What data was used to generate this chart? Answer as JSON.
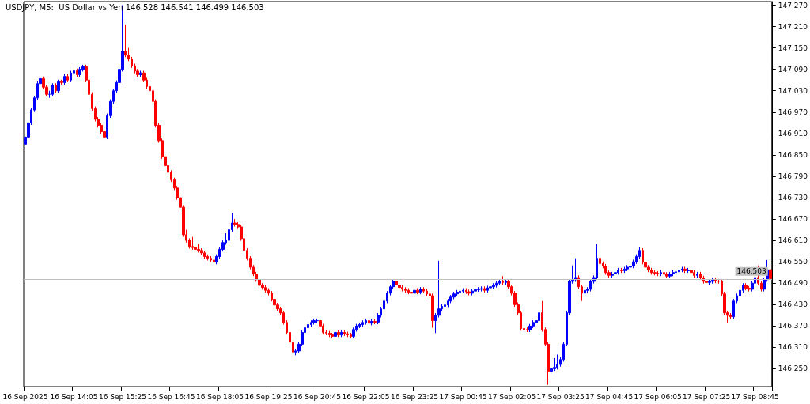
{
  "chart_data": {
    "type": "candlestick",
    "title": "USDJPY, M5:  US Dollar vs Yen 146.528 146.541 146.499 146.503",
    "categories": [
      "16 Sep 2025",
      null,
      null,
      null,
      null,
      null,
      null,
      null,
      null,
      null,
      null,
      null,
      null,
      null,
      null,
      null,
      "16 Sep 14:05",
      null,
      null,
      null,
      null,
      null,
      null,
      null,
      null,
      null,
      null,
      null,
      null,
      null,
      null,
      null,
      "16 Sep 15:25",
      null,
      null,
      null,
      null,
      null,
      null,
      null,
      null,
      null,
      null,
      null,
      null,
      null,
      null,
      null,
      "16 Sep 16:45",
      null,
      null,
      null,
      null,
      null,
      null,
      null,
      null,
      null,
      null,
      null,
      null,
      null,
      null,
      null,
      "16 Sep 18:05",
      null,
      null,
      null,
      null,
      null,
      null,
      null,
      null,
      null,
      null,
      null,
      null,
      null,
      null,
      null,
      "16 Sep 19:25",
      null,
      null,
      null,
      null,
      null,
      null,
      null,
      null,
      null,
      null,
      null,
      null,
      null,
      null,
      null,
      "16 Sep 20:45",
      null,
      null,
      null,
      null,
      null,
      null,
      null,
      null,
      null,
      null,
      null,
      null,
      null,
      null,
      null,
      "16 Sep 22:05",
      null,
      null,
      null,
      null,
      null,
      null,
      null,
      null,
      null,
      null,
      null,
      null,
      null,
      null,
      null,
      "16 Sep 23:25",
      null,
      null,
      null,
      null,
      null,
      null,
      null,
      null,
      null,
      null,
      null,
      null,
      null,
      null,
      null,
      "17 Sep 00:45",
      null,
      null,
      null,
      null,
      null,
      null,
      null,
      null,
      null,
      null,
      null,
      null,
      null,
      null,
      null,
      "17 Sep 02:05",
      null,
      null,
      null,
      null,
      null,
      null,
      null,
      null,
      null,
      null,
      null,
      null,
      null,
      null,
      null,
      "17 Sep 03:25",
      null,
      null,
      null,
      null,
      null,
      null,
      null,
      null,
      null,
      null,
      null,
      null,
      null,
      null,
      null,
      "17 Sep 04:45",
      null,
      null,
      null,
      null,
      null,
      null,
      null,
      null,
      null,
      null,
      null,
      null,
      null,
      null,
      null,
      "17 Sep 06:05",
      null,
      null,
      null,
      null,
      null,
      null,
      null,
      null,
      null,
      null,
      null,
      null,
      null,
      null,
      null,
      "17 Sep 07:25",
      null,
      null,
      null,
      null,
      null,
      null,
      null,
      null,
      null,
      null,
      null,
      null,
      null,
      null,
      null,
      "17 Sep 08:45",
      null,
      null,
      null,
      null,
      null
    ],
    "colors": [
      "#0000ff",
      "#0000ff",
      "#0000ff",
      "#0000ff",
      "#0000ff",
      "#0000ff",
      "#ff0000",
      "#ff0000",
      "#0000ff",
      "#0000ff",
      "#ff0000",
      "#0000ff",
      "#ff0000",
      "#0000ff",
      "#ff0000",
      "#0000ff",
      "#0000ff",
      "#ff0000",
      "#0000ff",
      "#0000ff",
      "#ff0000",
      "#ff0000",
      "#ff0000",
      "#ff0000",
      "#ff0000",
      "#ff0000",
      "#ff0000",
      "#0000ff",
      "#0000ff",
      "#0000ff",
      "#0000ff",
      "#0000ff",
      "#0000ff",
      "#ff0000",
      "#ff0000",
      "#ff0000",
      "#ff0000",
      "#ff0000",
      "#0000ff",
      "#ff0000",
      "#ff0000",
      "#ff0000",
      "#ff0000",
      "#ff0000",
      "#ff0000",
      "#ff0000",
      "#ff0000",
      "#ff0000",
      "#ff0000",
      "#ff0000",
      "#ff0000",
      "#ff0000",
      "#ff0000",
      "#ff0000",
      "#ff0000",
      "#ff0000",
      "#ff0000",
      "#ff0000",
      "#ff0000",
      "#ff0000",
      "#ff0000",
      "#ff0000",
      "#ff0000",
      "#0000ff",
      "#0000ff",
      "#0000ff",
      "#0000ff",
      "#0000ff",
      "#0000ff",
      "#ff0000",
      "#ff0000",
      "#ff0000",
      "#ff0000",
      "#ff0000",
      "#ff0000",
      "#ff0000",
      "#ff0000",
      "#ff0000",
      "#ff0000",
      "#ff0000",
      "#ff0000",
      "#ff0000",
      "#ff0000",
      "#ff0000",
      "#ff0000",
      "#ff0000",
      "#ff0000",
      "#ff0000",
      "#ff0000",
      "#0000ff",
      "#0000ff",
      "#0000ff",
      "#0000ff",
      "#0000ff",
      "#0000ff",
      "#0000ff",
      "#0000ff",
      "#ff0000",
      "#ff0000",
      "#ff0000",
      "#ff0000",
      "#ff0000",
      "#0000ff",
      "#ff0000",
      "#0000ff",
      "#ff0000",
      "#ff0000",
      "#ff0000",
      "#0000ff",
      "#0000ff",
      "#0000ff",
      "#0000ff",
      "#0000ff",
      "#ff0000",
      "#0000ff",
      "#ff0000",
      "#0000ff",
      "#0000ff",
      "#0000ff",
      "#0000ff",
      "#0000ff",
      "#0000ff",
      "#ff0000",
      "#ff0000",
      "#ff0000",
      "#ff0000",
      "#ff0000",
      "#ff0000",
      "#0000ff",
      "#ff0000",
      "#0000ff",
      "#ff0000",
      "#ff0000",
      "#ff0000",
      "#ff0000",
      "#0000ff",
      "#0000ff",
      "#0000ff",
      "#0000ff",
      "#0000ff",
      "#0000ff",
      "#0000ff",
      "#0000ff",
      "#0000ff",
      "#0000ff",
      "#ff0000",
      "#ff0000",
      "#0000ff",
      "#0000ff",
      "#0000ff",
      "#0000ff",
      "#ff0000",
      "#0000ff",
      "#0000ff",
      "#0000ff",
      "#0000ff",
      "#0000ff",
      "#ff0000",
      "#0000ff",
      "#ff0000",
      "#ff0000",
      "#ff0000",
      "#ff0000",
      "#ff0000",
      "#ff0000",
      "#ff0000",
      "#0000ff",
      "#0000ff",
      "#0000ff",
      "#0000ff",
      "#ff0000",
      "#ff0000",
      "#ff0000",
      "#0000ff",
      "#0000ff",
      "#0000ff",
      "#0000ff",
      "#0000ff",
      "#0000ff",
      "#0000ff",
      "#0000ff",
      "#0000ff",
      "#ff0000",
      "#ff0000",
      "#0000ff",
      "#0000ff",
      "#0000ff",
      "#0000ff",
      "#0000ff",
      "#ff0000",
      "#ff0000",
      "#ff0000",
      "#ff0000",
      "#0000ff",
      "#0000ff",
      "#0000ff",
      "#ff0000",
      "#0000ff",
      "#0000ff",
      "#0000ff",
      "#0000ff",
      "#0000ff",
      "#0000ff",
      "#ff0000",
      "#ff0000",
      "#ff0000",
      "#ff0000",
      "#ff0000",
      "#ff0000",
      "#0000ff",
      "#ff0000",
      "#ff0000",
      "#0000ff",
      "#0000ff",
      "#0000ff",
      "#0000ff",
      "#0000ff",
      "#ff0000",
      "#0000ff",
      "#ff0000",
      "#ff0000",
      "#0000ff",
      "#ff0000",
      "#ff0000",
      "#ff0000",
      "#0000ff",
      "#0000ff",
      "#ff0000",
      "#ff0000",
      "#ff0000",
      "#ff0000",
      "#ff0000",
      "#ff0000",
      "#0000ff",
      "#0000ff",
      "#0000ff",
      "#0000ff",
      "#ff0000",
      "#ff0000",
      "#0000ff",
      "#0000ff",
      "#ff0000",
      "#ff0000",
      "#0000ff",
      "#0000ff",
      "#ff0000"
    ],
    "ohlc": [
      [
        146.88,
        146.906,
        146.874,
        146.9
      ],
      [
        146.9,
        146.946,
        146.894,
        146.94
      ],
      [
        146.94,
        146.982,
        146.934,
        146.976
      ],
      [
        146.976,
        147.016,
        146.97,
        147.01
      ],
      [
        147.01,
        147.056,
        147.004,
        147.05
      ],
      [
        147.05,
        147.07,
        147.044,
        147.064
      ],
      [
        147.064,
        147.07,
        147.034,
        147.04
      ],
      [
        147.04,
        147.046,
        147.014,
        147.02
      ],
      [
        147.02,
        147.03,
        147.01,
        147.02
      ],
      [
        147.02,
        147.051,
        147.014,
        147.045
      ],
      [
        147.045,
        147.051,
        147.024,
        147.03
      ],
      [
        147.03,
        147.061,
        147.024,
        147.055
      ],
      [
        147.055,
        147.061,
        147.047,
        147.053
      ],
      [
        147.053,
        147.076,
        147.047,
        147.07
      ],
      [
        147.07,
        147.076,
        147.054,
        147.06
      ],
      [
        147.06,
        147.086,
        147.054,
        147.08
      ],
      [
        147.08,
        147.092,
        147.074,
        147.086
      ],
      [
        147.086,
        147.092,
        147.069,
        147.075
      ],
      [
        147.075,
        147.096,
        147.069,
        147.09
      ],
      [
        147.09,
        147.103,
        147.084,
        147.097
      ],
      [
        147.097,
        147.103,
        147.054,
        147.06
      ],
      [
        147.06,
        147.066,
        147.014,
        147.02
      ],
      [
        147.02,
        147.026,
        146.974,
        146.98
      ],
      [
        146.98,
        146.986,
        146.944,
        146.95
      ],
      [
        146.95,
        146.956,
        146.927,
        146.933
      ],
      [
        146.933,
        146.939,
        146.909,
        146.915
      ],
      [
        146.915,
        146.921,
        146.894,
        146.9
      ],
      [
        146.9,
        146.966,
        146.894,
        146.96
      ],
      [
        146.96,
        147.006,
        146.954,
        147.0
      ],
      [
        147.0,
        147.036,
        146.994,
        147.03
      ],
      [
        147.03,
        147.059,
        147.024,
        147.053
      ],
      [
        147.053,
        147.096,
        147.047,
        147.09
      ],
      [
        147.09,
        147.27,
        147.084,
        147.141
      ],
      [
        147.141,
        147.215,
        147.124,
        147.13
      ],
      [
        147.13,
        147.15,
        147.113,
        147.119
      ],
      [
        147.119,
        147.125,
        147.094,
        147.1
      ],
      [
        147.1,
        147.106,
        147.079,
        147.085
      ],
      [
        147.085,
        147.091,
        147.069,
        147.075
      ],
      [
        147.075,
        147.086,
        147.069,
        147.08
      ],
      [
        147.08,
        147.086,
        147.054,
        147.06
      ],
      [
        147.06,
        147.066,
        147.036,
        147.042
      ],
      [
        147.042,
        147.048,
        147.024,
        147.03
      ],
      [
        147.03,
        147.036,
        146.994,
        147.0
      ],
      [
        147.0,
        147.006,
        146.927,
        146.933
      ],
      [
        146.933,
        146.939,
        146.884,
        146.89
      ],
      [
        146.89,
        146.896,
        146.839,
        146.845
      ],
      [
        146.845,
        146.851,
        146.814,
        146.82
      ],
      [
        146.82,
        146.826,
        146.795,
        146.801
      ],
      [
        146.801,
        146.807,
        146.774,
        146.78
      ],
      [
        146.78,
        146.786,
        146.751,
        146.757
      ],
      [
        146.757,
        146.763,
        146.724,
        146.73
      ],
      [
        146.73,
        146.736,
        146.697,
        146.703
      ],
      [
        146.703,
        146.709,
        146.62,
        146.626
      ],
      [
        146.626,
        146.64,
        146.604,
        146.61
      ],
      [
        146.61,
        146.616,
        146.587,
        146.593
      ],
      [
        146.593,
        146.62,
        146.584,
        146.59
      ],
      [
        146.59,
        146.596,
        146.579,
        146.585
      ],
      [
        146.585,
        146.6,
        146.576,
        146.582
      ],
      [
        146.582,
        146.588,
        146.569,
        146.575
      ],
      [
        146.575,
        146.581,
        146.559,
        146.565
      ],
      [
        146.565,
        146.571,
        146.554,
        146.56
      ],
      [
        146.56,
        146.566,
        146.549,
        146.555
      ],
      [
        146.555,
        146.561,
        146.543,
        146.549
      ],
      [
        146.549,
        146.571,
        146.543,
        146.565
      ],
      [
        146.565,
        146.591,
        146.559,
        146.585
      ],
      [
        146.585,
        146.61,
        146.579,
        146.604
      ],
      [
        146.604,
        146.63,
        146.598,
        146.61
      ],
      [
        146.61,
        146.646,
        146.604,
        146.64
      ],
      [
        146.64,
        146.687,
        146.634,
        146.659
      ],
      [
        146.659,
        146.67,
        146.649,
        146.655
      ],
      [
        146.655,
        146.661,
        146.642,
        146.648
      ],
      [
        146.648,
        146.654,
        146.609,
        146.615
      ],
      [
        146.615,
        146.621,
        146.576,
        146.582
      ],
      [
        146.582,
        146.588,
        146.554,
        146.56
      ],
      [
        146.56,
        146.566,
        146.529,
        146.535
      ],
      [
        146.535,
        146.541,
        146.51,
        146.516
      ],
      [
        146.516,
        146.522,
        146.494,
        146.5
      ],
      [
        146.5,
        146.506,
        146.478,
        146.484
      ],
      [
        146.484,
        146.49,
        146.472,
        146.478
      ],
      [
        146.478,
        146.484,
        146.464,
        146.47
      ],
      [
        146.47,
        146.476,
        146.456,
        146.462
      ],
      [
        146.462,
        146.468,
        146.439,
        146.445
      ],
      [
        146.445,
        146.451,
        146.423,
        146.429
      ],
      [
        146.429,
        146.435,
        146.412,
        146.418
      ],
      [
        146.418,
        146.424,
        146.401,
        146.407
      ],
      [
        146.407,
        146.413,
        146.374,
        146.38
      ],
      [
        146.38,
        146.386,
        146.346,
        146.352
      ],
      [
        146.352,
        146.358,
        146.319,
        146.325
      ],
      [
        146.325,
        146.331,
        146.285,
        146.297
      ],
      [
        146.297,
        146.306,
        146.288,
        146.3
      ],
      [
        146.3,
        146.325,
        146.294,
        146.319
      ],
      [
        146.319,
        146.358,
        146.313,
        146.352
      ],
      [
        146.352,
        146.371,
        146.346,
        146.365
      ],
      [
        146.365,
        146.38,
        146.359,
        146.374
      ],
      [
        146.374,
        146.386,
        146.368,
        146.38
      ],
      [
        146.38,
        146.391,
        146.374,
        146.385
      ],
      [
        146.385,
        146.391,
        146.379,
        146.385
      ],
      [
        146.385,
        146.391,
        146.364,
        146.37
      ],
      [
        146.37,
        146.376,
        146.346,
        146.352
      ],
      [
        146.352,
        146.358,
        146.344,
        146.35
      ],
      [
        146.35,
        146.356,
        146.339,
        146.345
      ],
      [
        146.345,
        146.351,
        146.335,
        146.341
      ],
      [
        146.341,
        146.358,
        146.335,
        146.352
      ],
      [
        146.352,
        146.358,
        146.339,
        146.345
      ],
      [
        146.345,
        146.358,
        146.339,
        146.352
      ],
      [
        146.352,
        146.358,
        146.342,
        146.348
      ],
      [
        146.348,
        146.354,
        146.339,
        146.345
      ],
      [
        146.345,
        146.351,
        146.335,
        146.341
      ],
      [
        146.341,
        146.366,
        146.335,
        146.36
      ],
      [
        146.36,
        146.376,
        146.354,
        146.37
      ],
      [
        146.37,
        146.38,
        146.364,
        146.374
      ],
      [
        146.374,
        146.386,
        146.368,
        146.38
      ],
      [
        146.38,
        146.391,
        146.374,
        146.385
      ],
      [
        146.385,
        146.391,
        146.372,
        146.378
      ],
      [
        146.378,
        146.389,
        146.372,
        146.383
      ],
      [
        146.383,
        146.389,
        146.375,
        146.381
      ],
      [
        146.381,
        146.406,
        146.375,
        146.4
      ],
      [
        146.4,
        146.424,
        146.394,
        146.418
      ],
      [
        146.418,
        146.446,
        146.412,
        146.44
      ],
      [
        146.44,
        146.468,
        146.434,
        146.462
      ],
      [
        146.462,
        146.486,
        146.456,
        146.48
      ],
      [
        146.48,
        146.501,
        146.474,
        146.495
      ],
      [
        146.495,
        146.501,
        146.479,
        146.485
      ],
      [
        146.485,
        146.491,
        146.472,
        146.478
      ],
      [
        146.478,
        146.484,
        146.467,
        146.473
      ],
      [
        146.473,
        146.479,
        146.464,
        146.47
      ],
      [
        146.47,
        146.476,
        146.459,
        146.465
      ],
      [
        146.465,
        146.471,
        146.456,
        146.462
      ],
      [
        146.462,
        146.476,
        146.456,
        146.47
      ],
      [
        146.47,
        146.476,
        146.459,
        146.465
      ],
      [
        146.465,
        146.479,
        146.459,
        146.473
      ],
      [
        146.473,
        146.479,
        146.462,
        146.468
      ],
      [
        146.468,
        146.474,
        146.454,
        146.46
      ],
      [
        146.46,
        146.466,
        146.449,
        146.455
      ],
      [
        146.455,
        146.461,
        146.365,
        146.385
      ],
      [
        146.385,
        146.406,
        146.35,
        146.4
      ],
      [
        146.4,
        146.553,
        146.394,
        146.418
      ],
      [
        146.418,
        146.431,
        146.412,
        146.425
      ],
      [
        146.425,
        146.435,
        146.419,
        146.429
      ],
      [
        146.429,
        146.446,
        146.423,
        146.44
      ],
      [
        146.44,
        146.457,
        146.434,
        146.451
      ],
      [
        146.451,
        146.466,
        146.445,
        146.46
      ],
      [
        146.46,
        146.471,
        146.454,
        146.465
      ],
      [
        146.465,
        146.474,
        146.459,
        146.468
      ],
      [
        146.468,
        146.476,
        146.462,
        146.47
      ],
      [
        146.47,
        146.476,
        146.46,
        146.466
      ],
      [
        146.466,
        146.472,
        146.456,
        146.462
      ],
      [
        146.462,
        146.474,
        146.456,
        146.468
      ],
      [
        146.468,
        146.478,
        146.462,
        146.472
      ],
      [
        146.472,
        146.479,
        146.466,
        146.473
      ],
      [
        146.473,
        146.481,
        146.467,
        146.475
      ],
      [
        146.475,
        146.481,
        146.464,
        146.47
      ],
      [
        146.47,
        146.483,
        146.464,
        146.477
      ],
      [
        146.477,
        146.486,
        146.471,
        146.48
      ],
      [
        146.48,
        146.49,
        146.474,
        146.484
      ],
      [
        146.484,
        146.496,
        146.478,
        146.49
      ],
      [
        146.49,
        146.501,
        146.484,
        146.495
      ],
      [
        146.495,
        146.51,
        146.486,
        146.492
      ],
      [
        146.492,
        146.501,
        146.486,
        146.495
      ],
      [
        146.495,
        146.501,
        146.474,
        146.48
      ],
      [
        146.48,
        146.486,
        146.456,
        146.462
      ],
      [
        146.462,
        146.468,
        146.424,
        146.43
      ],
      [
        146.43,
        146.436,
        146.401,
        146.407
      ],
      [
        146.407,
        146.413,
        146.357,
        146.363
      ],
      [
        146.363,
        146.369,
        146.354,
        146.36
      ],
      [
        146.36,
        146.366,
        146.353,
        146.359
      ],
      [
        146.359,
        146.376,
        146.353,
        146.37
      ],
      [
        146.37,
        146.386,
        146.364,
        146.38
      ],
      [
        146.38,
        146.391,
        146.374,
        146.385
      ],
      [
        146.385,
        146.413,
        146.379,
        146.407
      ],
      [
        146.407,
        146.44,
        146.354,
        146.36
      ],
      [
        146.36,
        146.366,
        146.313,
        146.319
      ],
      [
        146.319,
        146.325,
        146.205,
        146.243
      ],
      [
        146.243,
        146.27,
        146.237,
        146.25
      ],
      [
        146.25,
        146.28,
        146.244,
        146.254
      ],
      [
        146.254,
        146.29,
        146.248,
        146.262
      ],
      [
        146.262,
        146.282,
        146.256,
        146.276
      ],
      [
        146.276,
        146.325,
        146.27,
        146.319
      ],
      [
        146.319,
        146.413,
        146.313,
        146.407
      ],
      [
        146.407,
        146.501,
        146.401,
        146.495
      ],
      [
        146.495,
        146.54,
        146.489,
        146.5
      ],
      [
        146.5,
        146.56,
        146.494,
        146.506
      ],
      [
        146.506,
        146.512,
        146.474,
        146.48
      ],
      [
        146.48,
        146.486,
        146.44,
        146.462
      ],
      [
        146.462,
        146.476,
        146.456,
        146.47
      ],
      [
        146.47,
        146.479,
        146.464,
        146.473
      ],
      [
        146.473,
        146.501,
        146.467,
        146.495
      ],
      [
        146.495,
        146.512,
        146.489,
        146.506
      ],
      [
        146.506,
        146.6,
        146.5,
        146.56
      ],
      [
        146.56,
        146.575,
        146.539,
        146.545
      ],
      [
        146.545,
        146.551,
        146.532,
        146.538
      ],
      [
        146.538,
        146.544,
        146.514,
        146.52
      ],
      [
        146.52,
        146.526,
        146.506,
        146.512
      ],
      [
        146.512,
        146.522,
        146.506,
        146.516
      ],
      [
        146.516,
        146.526,
        146.51,
        146.52
      ],
      [
        146.52,
        146.533,
        146.514,
        146.527
      ],
      [
        146.527,
        146.533,
        146.519,
        146.525
      ],
      [
        146.525,
        146.536,
        146.519,
        146.53
      ],
      [
        146.53,
        146.541,
        146.524,
        146.535
      ],
      [
        146.535,
        146.544,
        146.529,
        146.538
      ],
      [
        146.538,
        146.556,
        146.532,
        146.55
      ],
      [
        146.55,
        146.571,
        146.544,
        146.565
      ],
      [
        146.565,
        146.592,
        146.559,
        146.582
      ],
      [
        146.582,
        146.588,
        146.543,
        146.549
      ],
      [
        146.549,
        146.555,
        146.529,
        146.535
      ],
      [
        146.535,
        146.541,
        146.521,
        146.527
      ],
      [
        146.527,
        146.533,
        146.514,
        146.52
      ],
      [
        146.52,
        146.526,
        146.512,
        146.518
      ],
      [
        146.518,
        146.524,
        146.51,
        146.516
      ],
      [
        146.516,
        146.526,
        146.51,
        146.52
      ],
      [
        146.52,
        146.526,
        146.509,
        146.515
      ],
      [
        146.515,
        146.521,
        146.504,
        146.51
      ],
      [
        146.51,
        146.522,
        146.504,
        146.516
      ],
      [
        146.516,
        146.526,
        146.51,
        146.52
      ],
      [
        146.52,
        146.528,
        146.514,
        146.522
      ],
      [
        146.522,
        146.533,
        146.516,
        146.527
      ],
      [
        146.527,
        146.536,
        146.521,
        146.53
      ],
      [
        146.53,
        146.536,
        146.519,
        146.525
      ],
      [
        146.525,
        146.533,
        146.519,
        146.527
      ],
      [
        146.527,
        146.533,
        146.514,
        146.52
      ],
      [
        146.52,
        146.526,
        146.506,
        146.512
      ],
      [
        146.512,
        146.522,
        146.506,
        146.516
      ],
      [
        146.516,
        146.522,
        146.499,
        146.505
      ],
      [
        146.505,
        146.511,
        146.489,
        146.495
      ],
      [
        146.495,
        146.501,
        146.486,
        146.492
      ],
      [
        146.492,
        146.501,
        146.486,
        146.495
      ],
      [
        146.495,
        146.505,
        146.489,
        146.499
      ],
      [
        146.499,
        146.505,
        146.49,
        146.496
      ],
      [
        146.496,
        146.502,
        146.489,
        146.495
      ],
      [
        146.495,
        146.501,
        146.454,
        146.46
      ],
      [
        146.46,
        146.466,
        146.401,
        146.407
      ],
      [
        146.407,
        146.413,
        146.38,
        146.4
      ],
      [
        146.4,
        146.406,
        146.39,
        146.396
      ],
      [
        146.396,
        146.446,
        146.39,
        146.44
      ],
      [
        146.44,
        146.461,
        146.434,
        146.455
      ],
      [
        146.455,
        146.476,
        146.449,
        146.47
      ],
      [
        146.47,
        146.49,
        146.464,
        146.484
      ],
      [
        146.484,
        146.49,
        146.47,
        146.476
      ],
      [
        146.476,
        146.482,
        146.467,
        146.473
      ],
      [
        146.473,
        146.496,
        146.467,
        146.49
      ],
      [
        146.49,
        146.512,
        146.484,
        146.506
      ],
      [
        146.506,
        146.54,
        146.484,
        146.49
      ],
      [
        146.49,
        146.496,
        146.467,
        146.473
      ],
      [
        146.473,
        146.506,
        146.467,
        146.5
      ],
      [
        146.5,
        146.555,
        146.494,
        146.528
      ],
      [
        146.528,
        146.541,
        146.499,
        146.503
      ]
    ],
    "ylim": [
      146.2,
      147.28
    ],
    "yticks": [
      {
        "value": 146.25,
        "label": "146.250"
      },
      {
        "value": 146.31,
        "label": "146.310"
      },
      {
        "value": 146.37,
        "label": "146.370"
      },
      {
        "value": 146.43,
        "label": "146.430"
      },
      {
        "value": 146.49,
        "label": "146.490"
      },
      {
        "value": 146.55,
        "label": "146.550"
      },
      {
        "value": 146.61,
        "label": "146.610"
      },
      {
        "value": 146.67,
        "label": "146.670"
      },
      {
        "value": 146.73,
        "label": "146.730"
      },
      {
        "value": 146.79,
        "label": "146.790"
      },
      {
        "value": 146.85,
        "label": "146.850"
      },
      {
        "value": 146.91,
        "label": "146.910"
      },
      {
        "value": 146.97,
        "label": "146.970"
      },
      {
        "value": 147.03,
        "label": "147.030"
      },
      {
        "value": 147.09,
        "label": "147.090"
      },
      {
        "value": 147.15,
        "label": "147.150"
      },
      {
        "value": 147.21,
        "label": "147.210"
      },
      {
        "value": 147.27,
        "label": "147.270"
      }
    ],
    "ref_lines": [
      {
        "axis": "y",
        "value": 146.503,
        "label": "146.503",
        "color": "#c0c0c0"
      }
    ],
    "grid": false
  }
}
